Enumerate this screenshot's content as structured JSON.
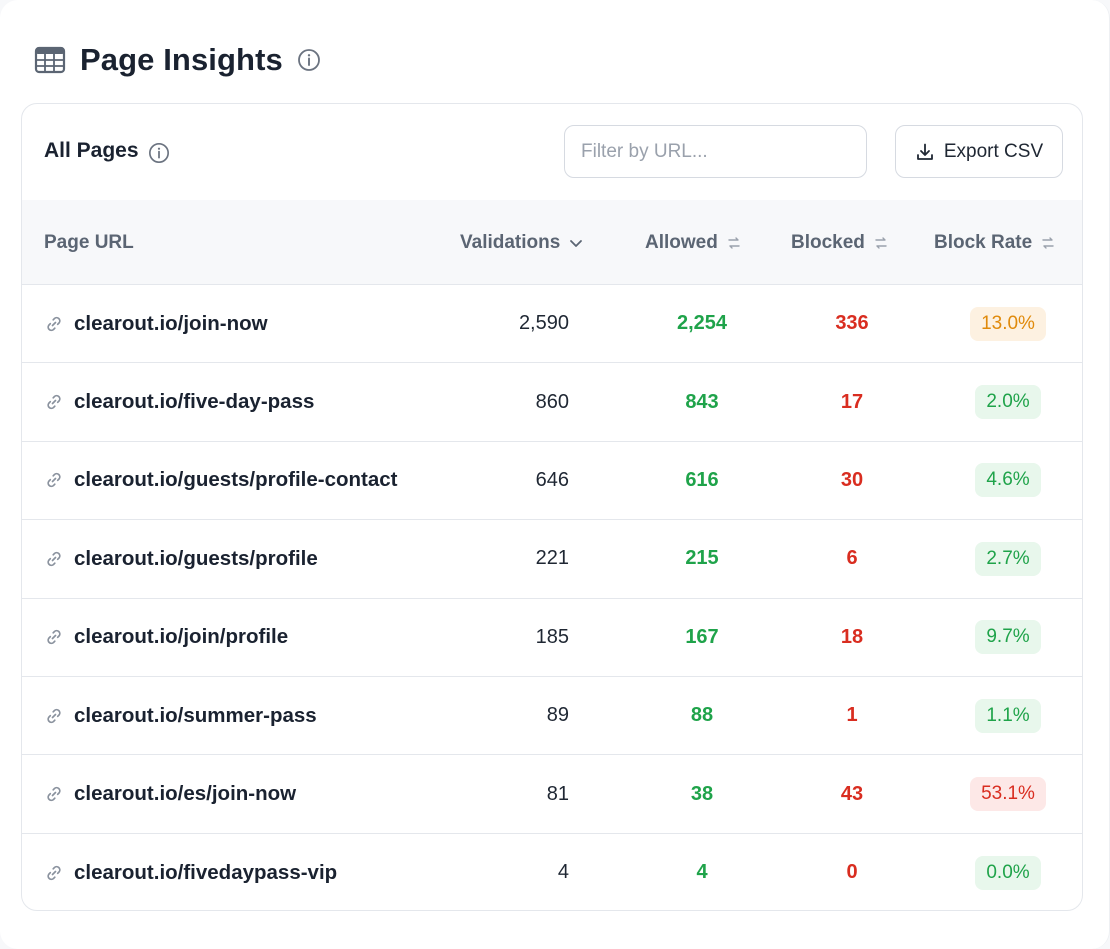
{
  "header": {
    "title": "Page Insights",
    "icon": "table-icon",
    "info_icon": "info-icon"
  },
  "card": {
    "title": "All Pages",
    "filter_placeholder": "Filter by URL...",
    "export_label": "Export CSV"
  },
  "columns": {
    "url": "Page URL",
    "validations": "Validations",
    "allowed": "Allowed",
    "blocked": "Blocked",
    "block_rate": "Block Rate"
  },
  "colors": {
    "allowed": "#1fa34a",
    "blocked": "#d92d20",
    "badge_low_bg": "#e8f7ec",
    "badge_low_fg": "#1fa34a",
    "badge_mid_bg": "#fdf1e1",
    "badge_mid_fg": "#e08a0b",
    "badge_high_bg": "#fde8e7",
    "badge_high_fg": "#d92d20"
  },
  "rows": [
    {
      "url": "clearout.io/join-now",
      "validations": "2,590",
      "allowed": "2,254",
      "blocked": "336",
      "block_rate": "13.0%",
      "level": "mid"
    },
    {
      "url": "clearout.io/five-day-pass",
      "validations": "860",
      "allowed": "843",
      "blocked": "17",
      "block_rate": "2.0%",
      "level": "low"
    },
    {
      "url": "clearout.io/guests/profile-contact",
      "validations": "646",
      "allowed": "616",
      "blocked": "30",
      "block_rate": "4.6%",
      "level": "low"
    },
    {
      "url": "clearout.io/guests/profile",
      "validations": "221",
      "allowed": "215",
      "blocked": "6",
      "block_rate": "2.7%",
      "level": "low"
    },
    {
      "url": "clearout.io/join/profile",
      "validations": "185",
      "allowed": "167",
      "blocked": "18",
      "block_rate": "9.7%",
      "level": "low"
    },
    {
      "url": "clearout.io/summer-pass",
      "validations": "89",
      "allowed": "88",
      "blocked": "1",
      "block_rate": "1.1%",
      "level": "low"
    },
    {
      "url": "clearout.io/es/join-now",
      "validations": "81",
      "allowed": "38",
      "blocked": "43",
      "block_rate": "53.1%",
      "level": "high"
    },
    {
      "url": "clearout.io/fivedaypass-vip",
      "validations": "4",
      "allowed": "4",
      "blocked": "0",
      "block_rate": "0.0%",
      "level": "low"
    }
  ]
}
